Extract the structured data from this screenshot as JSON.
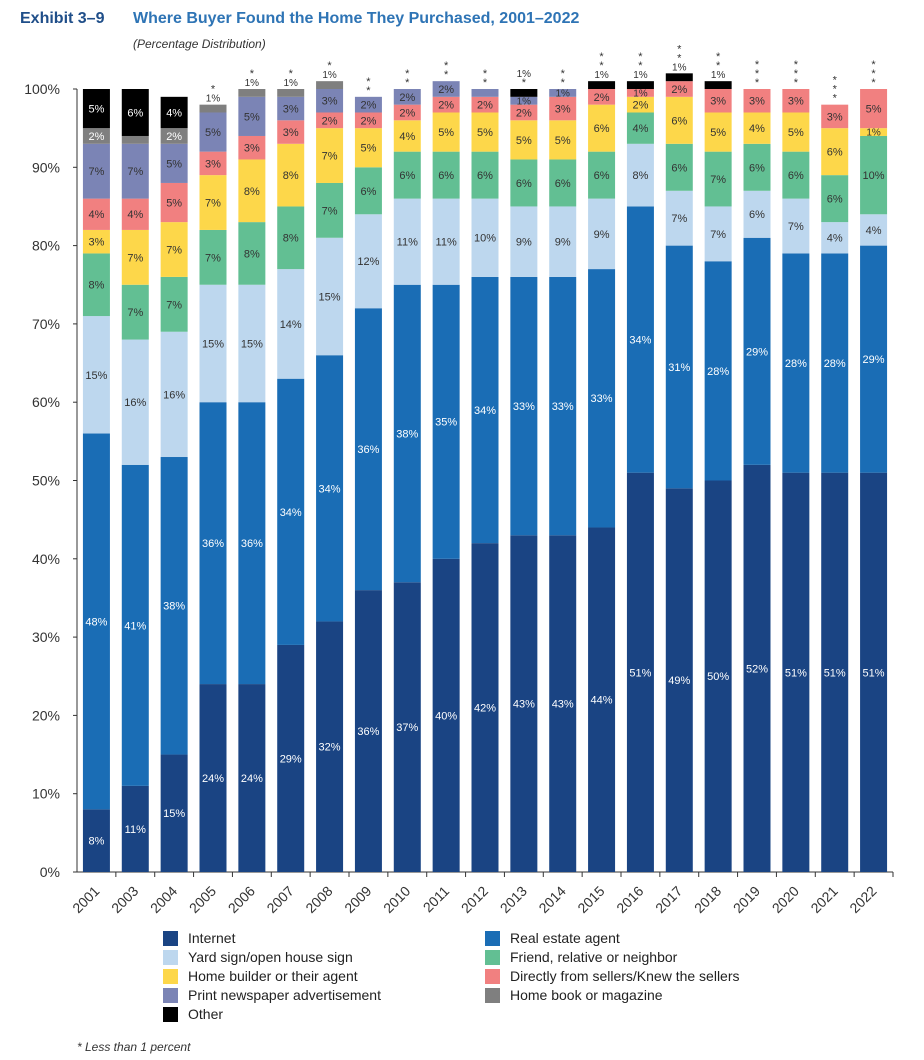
{
  "header": {
    "exhibit": "Exhibit 3–9",
    "title": "Where Buyer Found the Home They Purchased, 2001–2022",
    "subtitle": "(Percentage Distribution)"
  },
  "footnote": "* Less than 1 percent",
  "chart_data": {
    "type": "bar",
    "stacked": true,
    "title": "Where Buyer Found the Home They Purchased, 2001–2022",
    "subtitle": "(Percentage Distribution)",
    "xlabel": "",
    "ylabel": "",
    "ylim": [
      0,
      100
    ],
    "yticks": [
      "0%",
      "10%",
      "20%",
      "30%",
      "40%",
      "50%",
      "60%",
      "70%",
      "80%",
      "90%",
      "100%"
    ],
    "grid": false,
    "legend_position": "bottom",
    "categories": [
      "2001",
      "2003",
      "2004",
      "2005",
      "2006",
      "2007",
      "2008",
      "2009",
      "2010",
      "2011",
      "2012",
      "2013",
      "2014",
      "2015",
      "2016",
      "2017",
      "2018",
      "2019",
      "2020",
      "2021",
      "2022"
    ],
    "series": [
      {
        "name": "Internet",
        "color": "#1a4483",
        "label_color": "#ffffff",
        "values": [
          8,
          11,
          15,
          24,
          24,
          29,
          32,
          36,
          37,
          40,
          42,
          43,
          43,
          44,
          51,
          49,
          50,
          52,
          51,
          51,
          51
        ]
      },
      {
        "name": "Real estate agent",
        "color": "#1a6db5",
        "label_color": "#ffffff",
        "values": [
          48,
          41,
          38,
          36,
          36,
          34,
          34,
          36,
          38,
          35,
          34,
          33,
          33,
          33,
          34,
          31,
          28,
          29,
          28,
          28,
          29
        ]
      },
      {
        "name": "Yard sign/open house sign",
        "color": "#bdd7ee",
        "label_color": "#333333",
        "values": [
          15,
          16,
          16,
          15,
          15,
          14,
          15,
          12,
          11,
          11,
          10,
          9,
          9,
          9,
          8,
          7,
          7,
          6,
          7,
          4,
          4
        ]
      },
      {
        "name": "Friend, relative or neighbor",
        "color": "#62bf93",
        "label_color": "#333333",
        "values": [
          8,
          7,
          7,
          7,
          8,
          8,
          7,
          6,
          6,
          6,
          6,
          6,
          6,
          6,
          4,
          6,
          7,
          6,
          6,
          6,
          10
        ]
      },
      {
        "name": "Home builder or their agent",
        "color": "#fdd74a",
        "label_color": "#333333",
        "values": [
          3,
          7,
          7,
          7,
          8,
          8,
          7,
          5,
          4,
          5,
          5,
          5,
          5,
          6,
          2,
          6,
          5,
          4,
          5,
          6,
          1
        ]
      },
      {
        "name": "Directly from sellers/Knew the sellers",
        "color": "#f18080",
        "label_color": "#333333",
        "values": [
          4,
          4,
          5,
          3,
          3,
          3,
          2,
          2,
          2,
          2,
          2,
          2,
          3,
          2,
          1,
          2,
          3,
          3,
          3,
          3,
          5
        ]
      },
      {
        "name": "Print newspaper advertisement",
        "color": "#7b84b5",
        "label_color": "#333333",
        "values": [
          7,
          7,
          5,
          5,
          5,
          3,
          3,
          2,
          2,
          2,
          1,
          1,
          1,
          0,
          0,
          0,
          0,
          0,
          0,
          0,
          0
        ]
      },
      {
        "name": "Home book or magazine",
        "color": "#7f7f7f",
        "label_color": "#ffffff",
        "values": [
          2,
          1,
          2,
          1,
          1,
          1,
          1,
          0,
          0,
          0,
          0,
          0,
          0,
          0,
          0,
          0,
          0,
          0,
          0,
          0,
          0
        ]
      },
      {
        "name": "Other",
        "color": "#000000",
        "label_color": "#ffffff",
        "values": [
          5,
          6,
          4,
          0,
          0,
          0,
          0,
          0,
          0,
          0,
          0,
          1,
          0,
          1,
          1,
          1,
          1,
          0,
          0,
          0,
          0
        ]
      }
    ],
    "annotations_above_bars": [
      {
        "category": "2001",
        "text": []
      },
      {
        "category": "2003",
        "text": []
      },
      {
        "category": "2004",
        "text": []
      },
      {
        "category": "2005",
        "text": [
          "*",
          "1%"
        ]
      },
      {
        "category": "2006",
        "text": [
          "*",
          "1%"
        ]
      },
      {
        "category": "2007",
        "text": [
          "*",
          "1%"
        ]
      },
      {
        "category": "2008",
        "text": [
          "*",
          "1%"
        ]
      },
      {
        "category": "2009",
        "text": [
          "*",
          "*"
        ]
      },
      {
        "category": "2010",
        "text": [
          "*",
          "*"
        ]
      },
      {
        "category": "2011",
        "text": [
          "*",
          "*"
        ]
      },
      {
        "category": "2012",
        "text": [
          "*",
          "*"
        ]
      },
      {
        "category": "2013",
        "text": [
          "1%",
          "*"
        ]
      },
      {
        "category": "2014",
        "text": [
          "*",
          "*"
        ]
      },
      {
        "category": "2015",
        "text": [
          "*",
          "*",
          "1%"
        ]
      },
      {
        "category": "2016",
        "text": [
          "*",
          "*",
          "1%"
        ]
      },
      {
        "category": "2017",
        "text": [
          "*",
          "*",
          "1%"
        ]
      },
      {
        "category": "2018",
        "text": [
          "*",
          "*",
          "1%"
        ]
      },
      {
        "category": "2019",
        "text": [
          "*",
          "*",
          "*"
        ]
      },
      {
        "category": "2020",
        "text": [
          "*",
          "*",
          "*"
        ]
      },
      {
        "category": "2021",
        "text": [
          "*",
          "*",
          "*"
        ]
      },
      {
        "category": "2022",
        "text": [
          "*",
          "*",
          "*"
        ]
      }
    ],
    "small_segment_labels": {
      "2013": {
        "Print newspaper advertisement": "1%"
      },
      "2014": {
        "Print newspaper advertisement": "1%"
      },
      "2016": {
        "Directly from sellers/Knew the sellers": "1%"
      },
      "2022": {
        "Home builder or their agent": "1%"
      }
    }
  },
  "legend": {
    "items": [
      {
        "label": "Internet",
        "color": "#1a4483"
      },
      {
        "label": "Real estate agent",
        "color": "#1a6db5"
      },
      {
        "label": "Yard sign/open house sign",
        "color": "#bdd7ee"
      },
      {
        "label": "Friend, relative or neighbor",
        "color": "#62bf93"
      },
      {
        "label": "Home builder or their agent",
        "color": "#fdd74a"
      },
      {
        "label": "Directly from sellers/Knew the sellers",
        "color": "#f18080"
      },
      {
        "label": "Print newspaper advertisement",
        "color": "#7b84b5"
      },
      {
        "label": "Home book or magazine",
        "color": "#7f7f7f"
      },
      {
        "label": "Other",
        "color": "#000000"
      }
    ]
  }
}
